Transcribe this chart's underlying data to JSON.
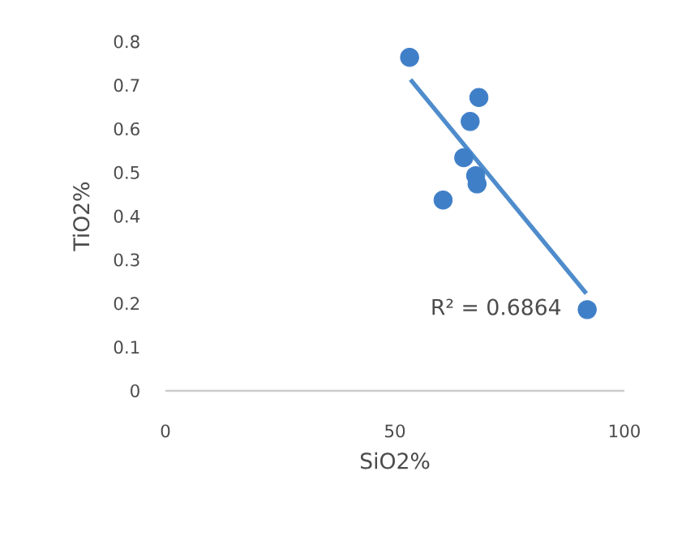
{
  "chart_data": {
    "type": "scatter",
    "xlabel": "SiO2%",
    "ylabel": "TiO2%",
    "xlim": [
      0,
      100
    ],
    "xticks": [
      0,
      50,
      100
    ],
    "ylim": [
      0,
      0.8
    ],
    "yticks": [
      0,
      0.1,
      0.2,
      0.3,
      0.4,
      0.5,
      0.6,
      0.7,
      0.8
    ],
    "marker": "circle",
    "grid": false,
    "series": [
      {
        "color": "#3f7fc8",
        "x": [
          53.2,
          68.3,
          66.4,
          65.0,
          67.6,
          67.9,
          60.5,
          91.9
        ],
        "values": [
          0.764,
          0.672,
          0.617,
          0.534,
          0.493,
          0.474,
          0.437,
          0.186
        ]
      },
      {
        "type": "line",
        "marker": "none",
        "color": "#4f8ccc",
        "x": [
          53.4,
          91.7
        ],
        "values": [
          0.713,
          0.223
        ]
      }
    ],
    "annotations": [
      "R² = 0.6864"
    ]
  }
}
